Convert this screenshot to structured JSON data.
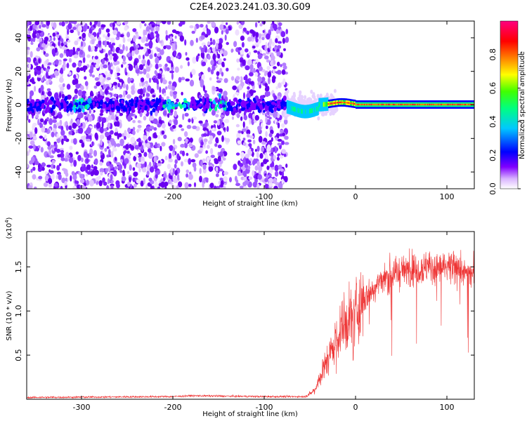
{
  "title": "C2E4.2023.241.03.30.G09",
  "chart_data": [
    {
      "type": "heatmap",
      "title": "C2E4.2023.241.03.30.G09",
      "xlabel": "Height of straight line (km)",
      "ylabel": "Frequency (Hz)",
      "xlim": [
        -360,
        130
      ],
      "ylim": [
        -50,
        50
      ],
      "xticks": [
        -300,
        -200,
        -100,
        0,
        100
      ],
      "yticks": [
        -40,
        -20,
        0,
        20,
        40
      ],
      "colorbar": {
        "label": "Normalized spectral amplitude",
        "range": [
          0,
          1
        ],
        "ticks": [
          0.0,
          0.2,
          0.4,
          0.6,
          0.8
        ],
        "colors": [
          "#ffffff",
          "#d9b3ff",
          "#8000ff",
          "#0000ff",
          "#00c8ff",
          "#00ff80",
          "#80ff00",
          "#ffff00",
          "#ff8000",
          "#ff0000",
          "#ff0080"
        ]
      },
      "description_regions": {
        "noise_region_x": [
          -360,
          -75
        ],
        "signal_region_x": [
          -75,
          130
        ],
        "signal_center_frequency": 0
      }
    },
    {
      "type": "line",
      "xlabel": "Height of straight line (km)",
      "ylabel": "SNR (10 * v/v)",
      "y_exponent_label": "(x10",
      "y_exponent_power": "4",
      "y_exponent_close": ")",
      "xlim": [
        -360,
        130
      ],
      "ylim": [
        0,
        1.9
      ],
      "xticks": [
        -300,
        -200,
        -100,
        0,
        100
      ],
      "yticks": [
        0.5,
        1.0,
        1.5
      ],
      "ytick_labels": [
        "0.5",
        "1.0",
        "1.5"
      ],
      "line_color": "#ee3333",
      "trend": {
        "x": [
          -360,
          -200,
          -180,
          -100,
          -55,
          -45,
          -35,
          -25,
          -15,
          -5,
          5,
          15,
          25,
          35,
          50,
          65,
          80,
          95,
          110,
          125
        ],
        "y": [
          0.02,
          0.03,
          0.04,
          0.03,
          0.03,
          0.1,
          0.35,
          0.6,
          0.8,
          0.9,
          1.05,
          1.2,
          1.32,
          1.4,
          1.45,
          1.48,
          1.5,
          1.48,
          1.47,
          1.42
        ]
      }
    }
  ]
}
